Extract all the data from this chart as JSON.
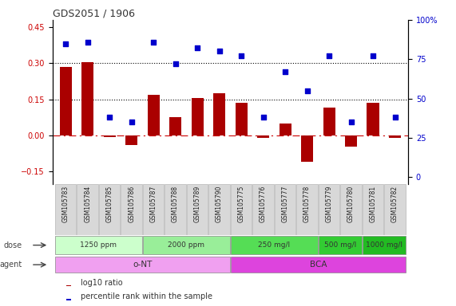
{
  "title": "GDS2051 / 1906",
  "samples": [
    "GSM105783",
    "GSM105784",
    "GSM105785",
    "GSM105786",
    "GSM105787",
    "GSM105788",
    "GSM105789",
    "GSM105790",
    "GSM105775",
    "GSM105776",
    "GSM105777",
    "GSM105778",
    "GSM105779",
    "GSM105780",
    "GSM105781",
    "GSM105782"
  ],
  "log10_ratio": [
    0.285,
    0.305,
    -0.005,
    -0.04,
    0.17,
    0.075,
    0.155,
    0.175,
    0.135,
    -0.01,
    0.05,
    -0.11,
    0.115,
    -0.045,
    0.135,
    -0.01
  ],
  "percentile_rank": [
    85,
    86,
    38,
    35,
    86,
    72,
    82,
    80,
    77,
    38,
    67,
    55,
    77,
    35,
    77,
    38
  ],
  "bar_color": "#aa0000",
  "dot_color": "#0000cc",
  "hline_zero_color": "#cc0000",
  "hline_dotted_color": "#000000",
  "yticks_left": [
    -0.15,
    0.0,
    0.15,
    0.3,
    0.45
  ],
  "yticks_right": [
    0,
    25,
    50,
    75,
    100
  ],
  "ylim_left": [
    -0.2,
    0.48
  ],
  "ylim_right": [
    -4.17,
    100
  ],
  "dose_groups": [
    {
      "label": "1250 ppm",
      "start": 0,
      "end": 4,
      "color": "#ccffcc"
    },
    {
      "label": "2000 ppm",
      "start": 4,
      "end": 8,
      "color": "#99ee99"
    },
    {
      "label": "250 mg/l",
      "start": 8,
      "end": 12,
      "color": "#55dd55"
    },
    {
      "label": "500 mg/l",
      "start": 12,
      "end": 14,
      "color": "#33cc33"
    },
    {
      "label": "1000 mg/l",
      "start": 14,
      "end": 16,
      "color": "#22bb22"
    }
  ],
  "agent_groups": [
    {
      "label": "o-NT",
      "start": 0,
      "end": 8,
      "color": "#f0a0f0"
    },
    {
      "label": "BCA",
      "start": 8,
      "end": 16,
      "color": "#dd44dd"
    }
  ],
  "legend_bar_color": "#aa0000",
  "legend_dot_color": "#0000cc",
  "legend_bar_label": "log10 ratio",
  "legend_dot_label": "percentile rank within the sample",
  "background_color": "#ffffff",
  "plot_bg_color": "#ffffff",
  "label_bg_color": "#d8d8d8",
  "label_border_color": "#aaaaaa"
}
